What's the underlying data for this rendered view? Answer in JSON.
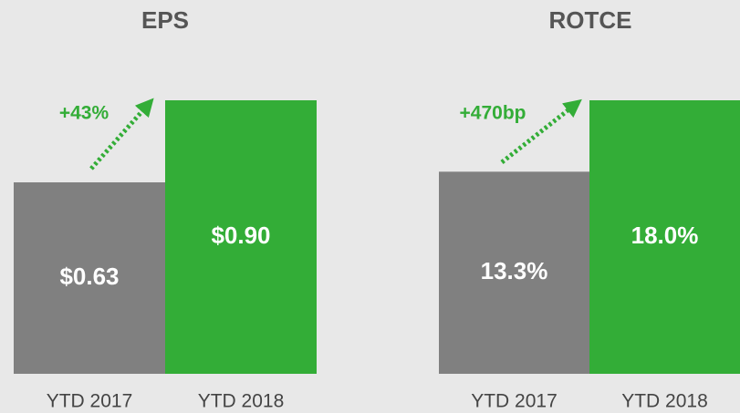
{
  "chart_data": [
    {
      "type": "bar",
      "title": "EPS",
      "categories": [
        "YTD 2017",
        "YTD 2018"
      ],
      "values": [
        0.63,
        0.9
      ],
      "value_labels": [
        "$0.63",
        "$0.90"
      ],
      "colors": [
        "#808080",
        "#33ad37"
      ],
      "annotation": "+43%"
    },
    {
      "type": "bar",
      "title": "ROTCE",
      "categories": [
        "YTD 2017",
        "YTD 2018"
      ],
      "values": [
        13.3,
        18.0
      ],
      "value_labels": [
        "13.3%",
        "18.0%"
      ],
      "colors": [
        "#808080",
        "#33ad37"
      ],
      "annotation": "+470bp"
    }
  ]
}
